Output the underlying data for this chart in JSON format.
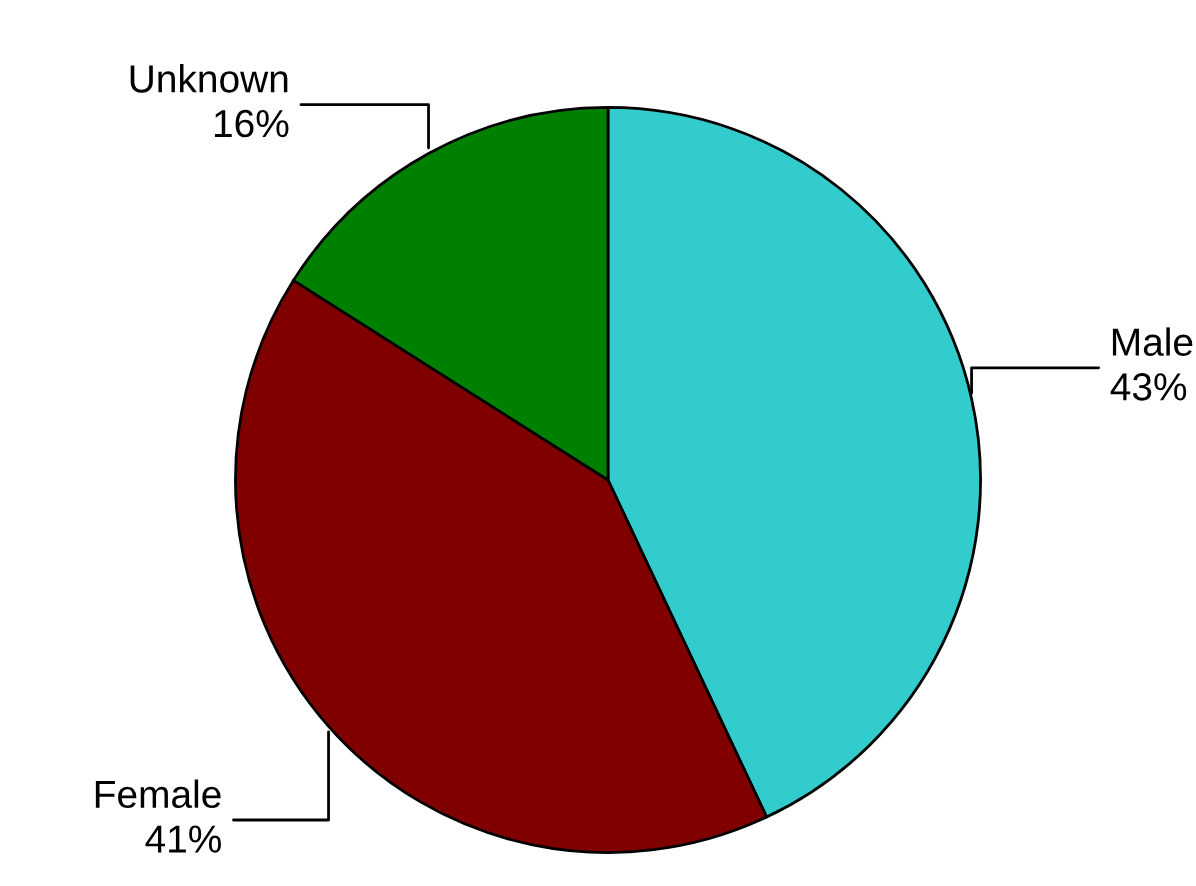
{
  "chart_data": {
    "type": "pie",
    "categories": [
      "Male",
      "Female",
      "Unknown"
    ],
    "values": [
      43,
      41,
      16
    ],
    "value_labels": [
      "43%",
      "41%",
      "16%"
    ],
    "colors": [
      "#33cccc",
      "#800000",
      "#008000"
    ]
  }
}
